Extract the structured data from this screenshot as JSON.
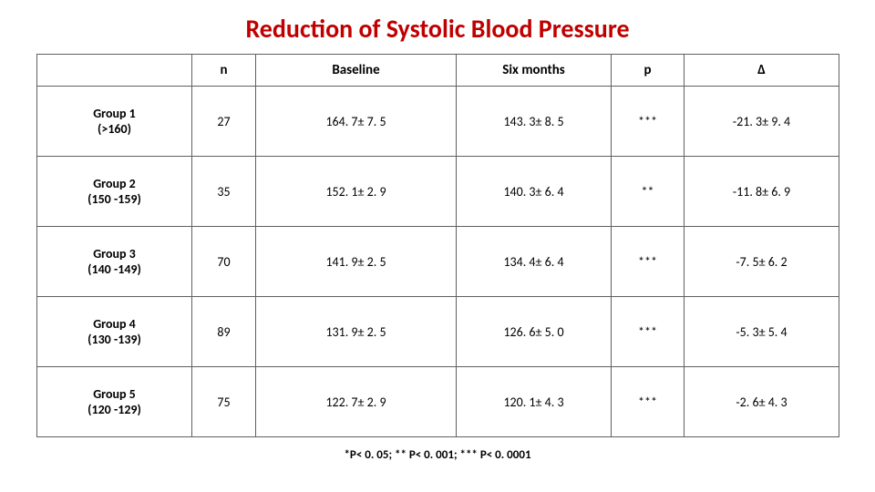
{
  "title": "Reduction of Systolic Blood Pressure",
  "columns": {
    "group": "",
    "n": "n",
    "baseline": "Baseline",
    "six_months": "Six months",
    "p": "p",
    "delta": "Δ"
  },
  "rows": [
    {
      "group_label": "Group 1",
      "group_range": "(>160)",
      "n": "27",
      "baseline": "164. 7± 7. 5",
      "six": "143. 3± 8. 5",
      "p": "***",
      "delta": "-21. 3± 9. 4"
    },
    {
      "group_label": "Group 2",
      "group_range": "(150 -159)",
      "n": "35",
      "baseline": "152. 1± 2. 9",
      "six": "140. 3± 6. 4",
      "p": "**",
      "delta": "-11. 8± 6. 9"
    },
    {
      "group_label": "Group 3",
      "group_range": "(140 -149)",
      "n": "70",
      "baseline": "141. 9± 2. 5",
      "six": "134. 4± 6. 4",
      "p": "***",
      "delta": "-7. 5± 6. 2"
    },
    {
      "group_label": "Group 4",
      "group_range": "(130 -139)",
      "n": "89",
      "baseline": "131. 9± 2. 5",
      "six": "126. 6± 5. 0",
      "p": "***",
      "delta": "-5. 3± 5. 4"
    },
    {
      "group_label": "Group 5",
      "group_range": "(120 -129)",
      "n": "75",
      "baseline": "122. 7± 2. 9",
      "six": "120. 1± 4. 3",
      "p": "***",
      "delta": "-2. 6± 4. 3"
    }
  ],
  "footnote": "*P< 0. 05; ** P< 0. 001; *** P< 0. 0001",
  "colors": {
    "title": "#c00000",
    "border": "#606060",
    "text": "#000000",
    "background": "#ffffff"
  }
}
